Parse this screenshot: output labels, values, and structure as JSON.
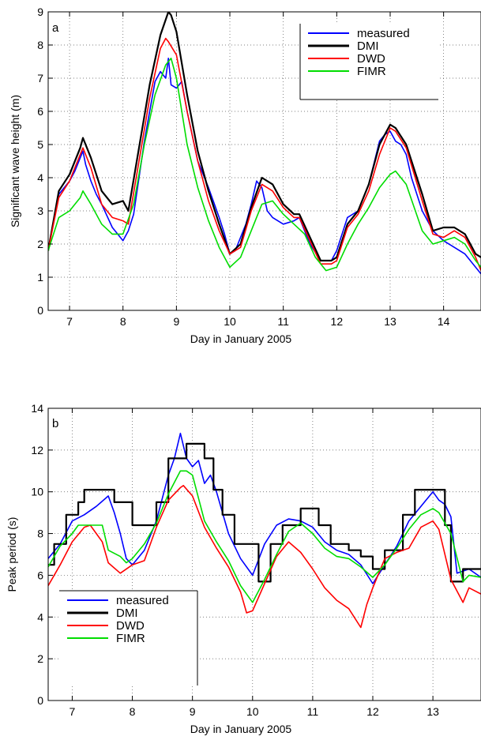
{
  "chart_data": [
    {
      "type": "line",
      "panel": "a",
      "xlabel": "Day in January 2005",
      "ylabel": "Significant wave height (m)",
      "xlim": [
        6.6,
        14.7
      ],
      "ylim": [
        0,
        9
      ],
      "xticks": [
        7,
        8,
        9,
        10,
        11,
        12,
        13,
        14
      ],
      "yticks": [
        0,
        1,
        2,
        3,
        4,
        5,
        6,
        7,
        8,
        9
      ],
      "grid": true,
      "legend": "top-right",
      "series": [
        {
          "name": "measured",
          "color": "#0000ff",
          "x": [
            6.6,
            6.8,
            7.0,
            7.1,
            7.2,
            7.25,
            7.3,
            7.4,
            7.5,
            7.6,
            7.8,
            7.9,
            8.0,
            8.1,
            8.2,
            8.3,
            8.4,
            8.5,
            8.6,
            8.7,
            8.8,
            8.85,
            8.9,
            9.0,
            9.1,
            9.2,
            9.4,
            9.6,
            9.8,
            9.9,
            10.0,
            10.1,
            10.2,
            10.3,
            10.4,
            10.5,
            10.6,
            10.7,
            10.8,
            11.0,
            11.2,
            11.3,
            11.4,
            11.5,
            11.7,
            11.9,
            12.0,
            12.2,
            12.4,
            12.6,
            12.8,
            12.9,
            13.0,
            13.1,
            13.2,
            13.3,
            13.4,
            13.6,
            13.8,
            14.0,
            14.2,
            14.4,
            14.6,
            14.7
          ],
          "y": [
            1.8,
            3.5,
            3.9,
            4.2,
            4.6,
            4.8,
            4.4,
            3.9,
            3.5,
            3.2,
            2.5,
            2.3,
            2.1,
            2.4,
            2.9,
            4.0,
            5.1,
            6.0,
            6.9,
            7.2,
            7.0,
            7.6,
            6.8,
            6.7,
            6.9,
            6.0,
            4.5,
            3.7,
            2.8,
            2.3,
            1.7,
            1.8,
            2.2,
            2.6,
            3.2,
            3.9,
            3.7,
            3.0,
            2.8,
            2.6,
            2.7,
            2.8,
            2.4,
            2.0,
            1.5,
            1.5,
            1.8,
            2.8,
            3.0,
            3.8,
            5.1,
            5.3,
            5.4,
            5.1,
            5.0,
            4.7,
            4.0,
            3.0,
            2.4,
            2.1,
            1.9,
            1.7,
            1.3,
            1.1
          ]
        },
        {
          "name": "DMI",
          "color": "#000000",
          "x": [
            6.6,
            6.8,
            7.0,
            7.2,
            7.25,
            7.4,
            7.6,
            7.8,
            8.0,
            8.1,
            8.3,
            8.5,
            8.7,
            8.85,
            8.9,
            9.0,
            9.2,
            9.4,
            9.6,
            9.8,
            10.0,
            10.2,
            10.4,
            10.6,
            10.8,
            11.0,
            11.2,
            11.3,
            11.5,
            11.7,
            11.9,
            12.0,
            12.2,
            12.4,
            12.6,
            12.8,
            13.0,
            13.1,
            13.3,
            13.6,
            13.8,
            14.0,
            14.2,
            14.4,
            14.6,
            14.7
          ],
          "y": [
            1.8,
            3.6,
            4.1,
            4.9,
            5.2,
            4.6,
            3.6,
            3.2,
            3.3,
            3.0,
            4.9,
            6.8,
            8.3,
            9.0,
            8.9,
            8.4,
            6.5,
            4.8,
            3.6,
            2.6,
            1.7,
            2.0,
            3.1,
            4.0,
            3.8,
            3.2,
            2.9,
            2.9,
            2.2,
            1.5,
            1.5,
            1.6,
            2.6,
            3.0,
            3.8,
            5.0,
            5.6,
            5.5,
            5.0,
            3.5,
            2.4,
            2.5,
            2.5,
            2.3,
            1.7,
            1.6
          ]
        },
        {
          "name": "DWD",
          "color": "#ff0000",
          "x": [
            6.6,
            6.8,
            7.0,
            7.2,
            7.25,
            7.4,
            7.6,
            7.8,
            8.0,
            8.1,
            8.3,
            8.5,
            8.7,
            8.8,
            8.85,
            9.0,
            9.2,
            9.4,
            9.6,
            9.8,
            10.0,
            10.2,
            10.4,
            10.6,
            10.8,
            11.0,
            11.2,
            11.3,
            11.5,
            11.7,
            11.9,
            12.0,
            12.2,
            12.4,
            12.6,
            12.8,
            13.0,
            13.1,
            13.3,
            13.6,
            13.8,
            14.0,
            14.2,
            14.4,
            14.6,
            14.7
          ],
          "y": [
            1.8,
            3.4,
            3.9,
            4.7,
            4.9,
            4.3,
            3.2,
            2.8,
            2.7,
            2.6,
            4.5,
            6.4,
            7.9,
            8.2,
            8.1,
            7.7,
            6.0,
            4.5,
            3.3,
            2.4,
            1.7,
            1.9,
            3.0,
            3.8,
            3.6,
            3.1,
            2.8,
            2.8,
            2.1,
            1.4,
            1.4,
            1.5,
            2.5,
            2.9,
            3.6,
            4.7,
            5.5,
            5.4,
            4.9,
            3.3,
            2.3,
            2.2,
            2.4,
            2.2,
            1.6,
            1.2
          ]
        },
        {
          "name": "FIMR",
          "color": "#00dd00",
          "x": [
            6.6,
            6.8,
            7.0,
            7.2,
            7.25,
            7.4,
            7.6,
            7.8,
            8.0,
            8.2,
            8.4,
            8.6,
            8.8,
            8.9,
            9.0,
            9.2,
            9.4,
            9.6,
            9.8,
            10.0,
            10.2,
            10.4,
            10.6,
            10.8,
            11.0,
            11.2,
            11.4,
            11.6,
            11.8,
            12.0,
            12.2,
            12.4,
            12.6,
            12.8,
            13.0,
            13.1,
            13.3,
            13.6,
            13.8,
            14.0,
            14.2,
            14.4,
            14.6,
            14.7
          ],
          "y": [
            1.8,
            2.8,
            3.0,
            3.4,
            3.6,
            3.2,
            2.6,
            2.3,
            2.3,
            3.2,
            5.0,
            6.5,
            7.4,
            7.6,
            7.0,
            5.0,
            3.7,
            2.7,
            1.9,
            1.3,
            1.6,
            2.4,
            3.2,
            3.3,
            2.9,
            2.6,
            2.3,
            1.6,
            1.2,
            1.3,
            2.0,
            2.6,
            3.1,
            3.7,
            4.1,
            4.2,
            3.8,
            2.4,
            2.0,
            2.1,
            2.2,
            2.0,
            1.5,
            1.3
          ]
        }
      ]
    },
    {
      "type": "line",
      "panel": "b",
      "xlabel": "Day in January 2005",
      "ylabel": "Peak period (s)",
      "xlim": [
        6.6,
        13.8
      ],
      "ylim": [
        0,
        14
      ],
      "xticks": [
        7,
        8,
        9,
        10,
        11,
        12,
        13
      ],
      "yticks": [
        0,
        2,
        4,
        6,
        8,
        10,
        12,
        14
      ],
      "grid": true,
      "legend": "bottom-left",
      "series": [
        {
          "name": "measured",
          "color": "#0000ff",
          "x": [
            6.6,
            6.8,
            7.0,
            7.2,
            7.4,
            7.6,
            7.7,
            7.8,
            7.9,
            8.0,
            8.2,
            8.4,
            8.6,
            8.7,
            8.8,
            8.9,
            9.0,
            9.1,
            9.2,
            9.3,
            9.4,
            9.6,
            9.8,
            10.0,
            10.2,
            10.4,
            10.6,
            10.8,
            11.0,
            11.2,
            11.4,
            11.6,
            11.8,
            12.0,
            12.2,
            12.4,
            12.6,
            12.8,
            13.0,
            13.1,
            13.2,
            13.3,
            13.4,
            13.6,
            13.8
          ],
          "y": [
            6.8,
            7.5,
            8.6,
            8.9,
            9.3,
            9.8,
            9.0,
            8.0,
            6.8,
            6.5,
            7.2,
            8.6,
            10.8,
            11.6,
            12.8,
            11.6,
            11.2,
            11.5,
            10.4,
            10.8,
            10.0,
            8.0,
            6.8,
            6.0,
            7.5,
            8.4,
            8.7,
            8.6,
            8.3,
            7.6,
            7.2,
            7.0,
            6.5,
            5.6,
            6.5,
            7.4,
            8.6,
            9.3,
            10.0,
            9.6,
            9.4,
            8.8,
            6.1,
            6.3,
            5.9
          ]
        },
        {
          "name": "DMI",
          "color": "#000000",
          "x": [
            6.6,
            6.7,
            6.7,
            6.9,
            6.9,
            7.1,
            7.1,
            7.2,
            7.2,
            7.7,
            7.7,
            8.0,
            8.0,
            8.4,
            8.4,
            8.6,
            8.6,
            8.9,
            8.9,
            9.2,
            9.2,
            9.35,
            9.35,
            9.5,
            9.5,
            9.7,
            9.7,
            10.1,
            10.1,
            10.3,
            10.3,
            10.5,
            10.5,
            10.8,
            10.8,
            11.1,
            11.1,
            11.3,
            11.3,
            11.6,
            11.6,
            11.8,
            11.8,
            12.0,
            12.0,
            12.2,
            12.2,
            12.5,
            12.5,
            12.7,
            12.7,
            13.2,
            13.2,
            13.3,
            13.3,
            13.5,
            13.5,
            13.8
          ],
          "y": [
            6.5,
            6.5,
            7.5,
            7.5,
            8.9,
            8.9,
            9.5,
            9.5,
            10.1,
            10.1,
            9.5,
            9.5,
            8.4,
            8.4,
            9.5,
            9.5,
            11.6,
            11.6,
            12.3,
            12.3,
            11.6,
            11.6,
            10.1,
            10.1,
            8.9,
            8.9,
            7.5,
            7.5,
            5.7,
            5.7,
            7.5,
            7.5,
            8.4,
            8.4,
            9.2,
            9.2,
            8.4,
            8.4,
            7.5,
            7.5,
            7.2,
            7.2,
            6.9,
            6.9,
            6.3,
            6.3,
            7.2,
            7.2,
            8.9,
            8.9,
            10.1,
            10.1,
            8.4,
            8.4,
            5.7,
            5.7,
            6.3,
            6.3
          ]
        },
        {
          "name": "DWD",
          "color": "#ff0000",
          "x": [
            6.6,
            6.8,
            7.0,
            7.2,
            7.3,
            7.5,
            7.6,
            7.8,
            8.0,
            8.2,
            8.4,
            8.6,
            8.8,
            8.85,
            9.0,
            9.2,
            9.4,
            9.6,
            9.8,
            9.9,
            10.0,
            10.2,
            10.4,
            10.6,
            10.8,
            11.0,
            11.2,
            11.4,
            11.6,
            11.8,
            11.9,
            12.0,
            12.2,
            12.4,
            12.6,
            12.8,
            13.0,
            13.1,
            13.3,
            13.5,
            13.6,
            13.8
          ],
          "y": [
            5.5,
            6.5,
            7.6,
            8.3,
            8.4,
            7.6,
            6.6,
            6.1,
            6.5,
            6.7,
            8.3,
            9.6,
            10.2,
            10.3,
            9.8,
            8.3,
            7.3,
            6.4,
            5.2,
            4.2,
            4.3,
            5.6,
            6.9,
            7.6,
            7.1,
            6.3,
            5.4,
            4.8,
            4.4,
            3.5,
            4.6,
            5.4,
            6.8,
            7.1,
            7.3,
            8.3,
            8.6,
            8.2,
            5.8,
            4.7,
            5.4,
            5.1
          ]
        },
        {
          "name": "FIMR",
          "color": "#00dd00",
          "x": [
            6.6,
            6.8,
            7.0,
            7.1,
            7.5,
            7.6,
            7.8,
            7.9,
            8.0,
            8.2,
            8.4,
            8.6,
            8.8,
            8.9,
            9.0,
            9.2,
            9.4,
            9.6,
            9.8,
            10.0,
            10.2,
            10.4,
            10.6,
            10.8,
            11.0,
            11.2,
            11.4,
            11.6,
            11.8,
            12.0,
            12.2,
            12.4,
            12.6,
            12.8,
            13.0,
            13.1,
            13.3,
            13.5,
            13.6,
            13.8
          ],
          "y": [
            6.4,
            7.4,
            8.0,
            8.4,
            8.4,
            7.2,
            6.9,
            6.6,
            6.8,
            7.5,
            8.5,
            9.9,
            11.0,
            11.0,
            10.8,
            8.6,
            7.6,
            6.7,
            5.5,
            4.7,
            5.8,
            7.0,
            8.1,
            8.5,
            8.0,
            7.3,
            6.9,
            6.8,
            6.4,
            5.9,
            6.5,
            7.3,
            8.2,
            8.9,
            9.2,
            9.0,
            8.0,
            5.7,
            6.0,
            5.9
          ]
        }
      ]
    }
  ]
}
